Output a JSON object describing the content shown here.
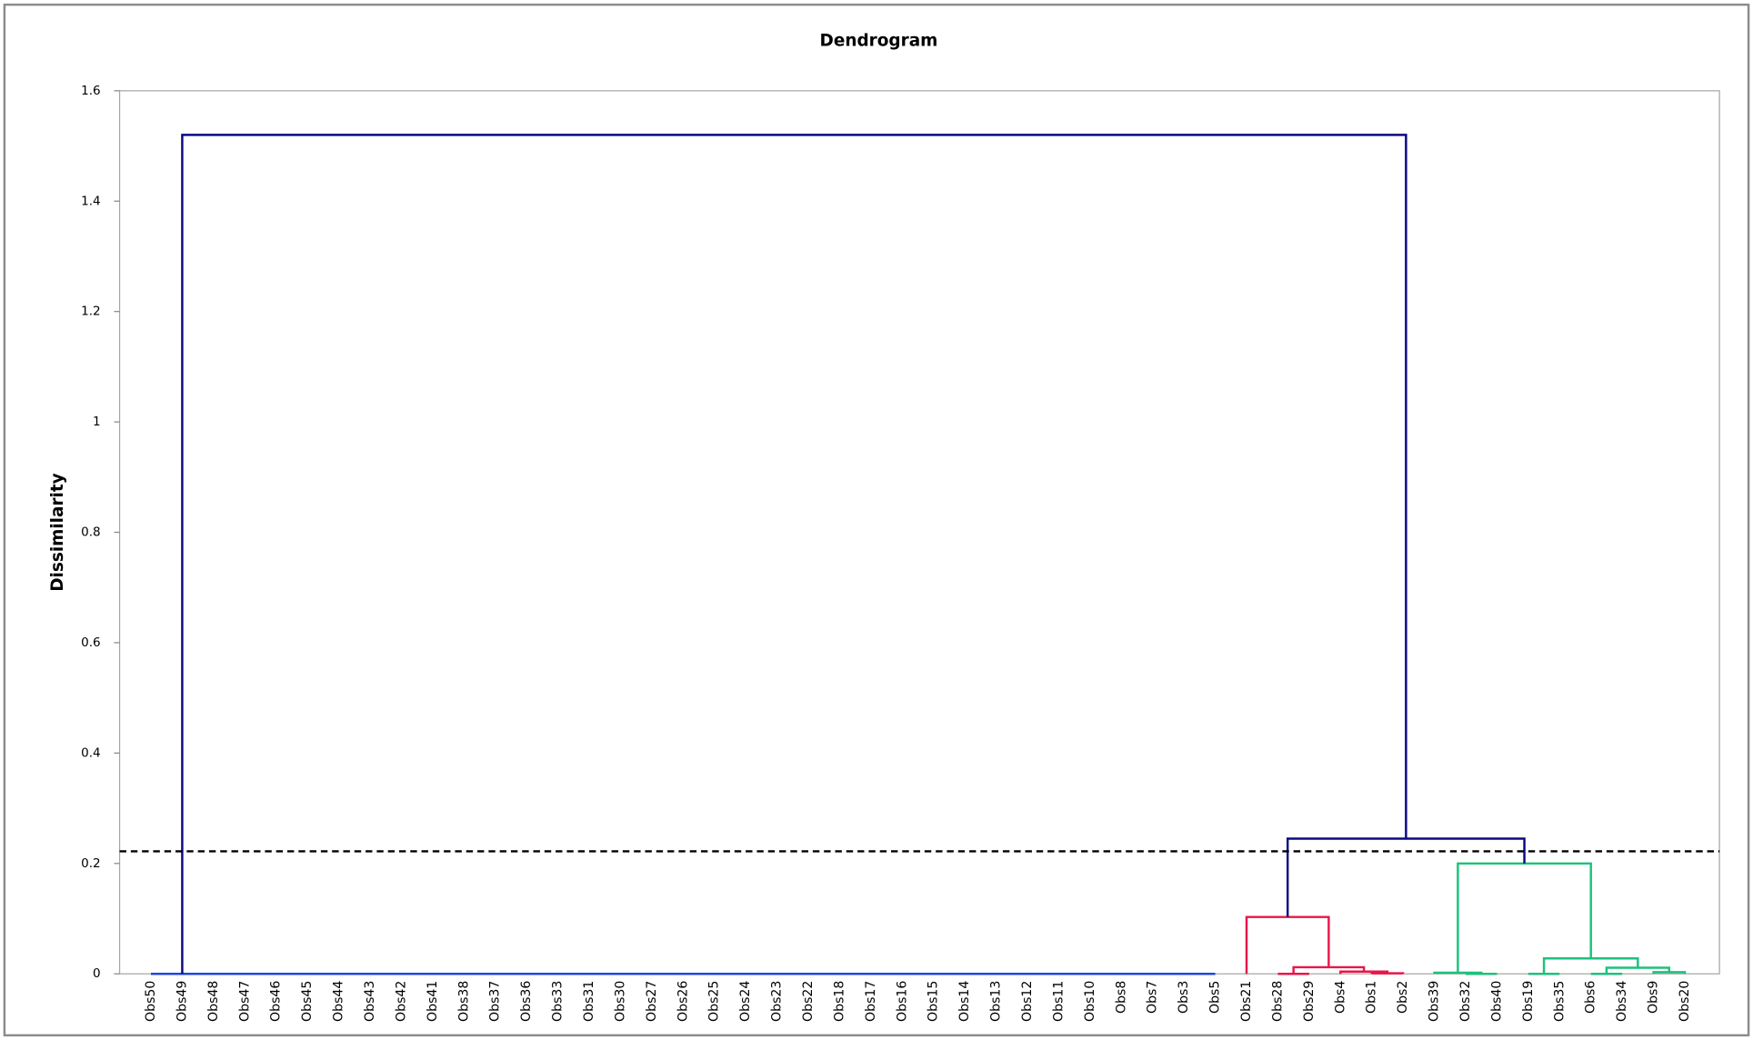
{
  "chart_data": {
    "type": "dendrogram",
    "title": "Dendrogram",
    "y_label": "Dissimilarity",
    "categories": [
      "Obs50",
      "Obs49",
      "Obs48",
      "Obs47",
      "Obs46",
      "Obs45",
      "Obs44",
      "Obs43",
      "Obs42",
      "Obs41",
      "Obs38",
      "Obs37",
      "Obs36",
      "Obs33",
      "Obs31",
      "Obs30",
      "Obs27",
      "Obs26",
      "Obs25",
      "Obs24",
      "Obs23",
      "Obs22",
      "Obs18",
      "Obs17",
      "Obs16",
      "Obs15",
      "Obs14",
      "Obs13",
      "Obs12",
      "Obs11",
      "Obs10",
      "Obs8",
      "Obs7",
      "Obs3",
      "Obs5",
      "Obs21",
      "Obs28",
      "Obs29",
      "Obs4",
      "Obs1",
      "Obs2",
      "Obs39",
      "Obs32",
      "Obs40",
      "Obs19",
      "Obs35",
      "Obs6",
      "Obs34",
      "Obs9",
      "Obs20"
    ],
    "ylim": [
      0,
      1.6
    ],
    "yticks": [
      0,
      0.2,
      0.4,
      0.6,
      0.8,
      1,
      1.2,
      1.4,
      1.6
    ],
    "cut_height": 0.222,
    "merges": [
      {
        "children": [
          33,
          34
        ],
        "height": 0,
        "color": "#1f47e0"
      },
      {
        "children": [
          32,
          50
        ],
        "height": 0,
        "color": "#1f47e0"
      },
      {
        "children": [
          31,
          51
        ],
        "height": 0,
        "color": "#1f47e0"
      },
      {
        "children": [
          30,
          52
        ],
        "height": 0,
        "color": "#1f47e0"
      },
      {
        "children": [
          29,
          53
        ],
        "height": 0,
        "color": "#1f47e0"
      },
      {
        "children": [
          28,
          54
        ],
        "height": 0,
        "color": "#1f47e0"
      },
      {
        "children": [
          27,
          55
        ],
        "height": 0,
        "color": "#1f47e0"
      },
      {
        "children": [
          26,
          56
        ],
        "height": 0,
        "color": "#1f47e0"
      },
      {
        "children": [
          25,
          57
        ],
        "height": 0,
        "color": "#1f47e0"
      },
      {
        "children": [
          24,
          58
        ],
        "height": 0,
        "color": "#1f47e0"
      },
      {
        "children": [
          23,
          59
        ],
        "height": 0,
        "color": "#1f47e0"
      },
      {
        "children": [
          22,
          60
        ],
        "height": 0,
        "color": "#1f47e0"
      },
      {
        "children": [
          21,
          61
        ],
        "height": 0,
        "color": "#1f47e0"
      },
      {
        "children": [
          20,
          62
        ],
        "height": 0,
        "color": "#1f47e0"
      },
      {
        "children": [
          19,
          63
        ],
        "height": 0,
        "color": "#1f47e0"
      },
      {
        "children": [
          18,
          64
        ],
        "height": 0,
        "color": "#1f47e0"
      },
      {
        "children": [
          17,
          65
        ],
        "height": 0,
        "color": "#1f47e0"
      },
      {
        "children": [
          16,
          66
        ],
        "height": 0,
        "color": "#1f47e0"
      },
      {
        "children": [
          15,
          67
        ],
        "height": 0,
        "color": "#1f47e0"
      },
      {
        "children": [
          14,
          68
        ],
        "height": 0,
        "color": "#1f47e0"
      },
      {
        "children": [
          13,
          69
        ],
        "height": 0,
        "color": "#1f47e0"
      },
      {
        "children": [
          12,
          70
        ],
        "height": 0,
        "color": "#1f47e0"
      },
      {
        "children": [
          11,
          71
        ],
        "height": 0,
        "color": "#1f47e0"
      },
      {
        "children": [
          10,
          72
        ],
        "height": 0,
        "color": "#1f47e0"
      },
      {
        "children": [
          9,
          73
        ],
        "height": 0,
        "color": "#1f47e0"
      },
      {
        "children": [
          8,
          74
        ],
        "height": 0,
        "color": "#1f47e0"
      },
      {
        "children": [
          7,
          75
        ],
        "height": 0,
        "color": "#1f47e0"
      },
      {
        "children": [
          6,
          76
        ],
        "height": 0,
        "color": "#1f47e0"
      },
      {
        "children": [
          5,
          77
        ],
        "height": 0,
        "color": "#1f47e0"
      },
      {
        "children": [
          4,
          78
        ],
        "height": 0,
        "color": "#1f47e0"
      },
      {
        "children": [
          3,
          79
        ],
        "height": 0,
        "color": "#1f47e0"
      },
      {
        "children": [
          2,
          80
        ],
        "height": 0,
        "color": "#1f47e0"
      },
      {
        "children": [
          1,
          81
        ],
        "height": 0,
        "color": "#1f47e0"
      },
      {
        "children": [
          0,
          82
        ],
        "height": 0,
        "color": "#1f47e0"
      },
      {
        "children": [
          39,
          40
        ],
        "height": 0.001,
        "color": "#e8174a"
      },
      {
        "children": [
          38,
          84
        ],
        "height": 0.004,
        "color": "#e8174a"
      },
      {
        "children": [
          36,
          37
        ],
        "height": 0,
        "color": "#e8174a"
      },
      {
        "children": [
          86,
          85
        ],
        "height": 0.012,
        "color": "#e8174a"
      },
      {
        "children": [
          35,
          87
        ],
        "height": 0.103,
        "color": "#e8174a"
      },
      {
        "children": [
          42,
          43
        ],
        "height": 0,
        "color": "#1cc27c"
      },
      {
        "children": [
          41,
          89
        ],
        "height": 0.002,
        "color": "#1cc27c"
      },
      {
        "children": [
          44,
          45
        ],
        "height": 0,
        "color": "#1cc27c"
      },
      {
        "children": [
          46,
          47
        ],
        "height": 0,
        "color": "#1cc27c"
      },
      {
        "children": [
          48,
          49
        ],
        "height": 0.003,
        "color": "#1cc27c"
      },
      {
        "children": [
          92,
          93
        ],
        "height": 0.011,
        "color": "#1cc27c"
      },
      {
        "children": [
          91,
          94
        ],
        "height": 0.028,
        "color": "#1cc27c"
      },
      {
        "children": [
          90,
          95
        ],
        "height": 0.2,
        "color": "#1cc27c"
      },
      {
        "children": [
          88,
          96
        ],
        "height": 0.245,
        "color": "#0a0a80"
      },
      {
        "children": [
          83,
          97
        ],
        "height": 1.52,
        "color": "#0a0a80"
      }
    ]
  }
}
